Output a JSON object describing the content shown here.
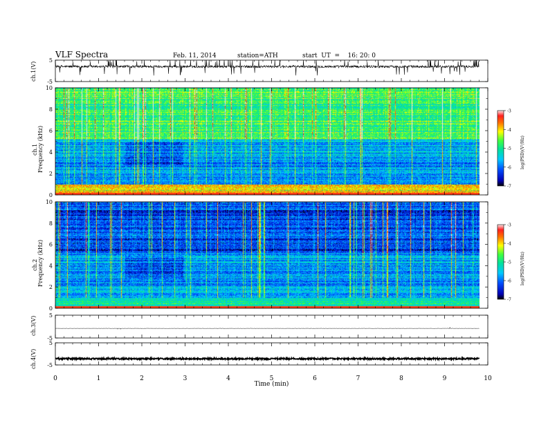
{
  "header": {
    "title": "VLF  Spectra",
    "date": "Feb. 11, 2014",
    "station": "station=ATH",
    "start": "start  UT  =    16: 20: 0"
  },
  "chart_data": [
    {
      "type": "line",
      "ylabel": "ch.1(V)",
      "ylim": [
        -5,
        5
      ],
      "yticks": [
        "5",
        "-5"
      ],
      "description_series": "noisy waveform around +2 V with spikes"
    },
    {
      "type": "heatmap",
      "ylabel_line1": "ch.1",
      "ylabel_line2": "Frequency  (kHz)",
      "ylim": [
        0,
        10
      ],
      "yticks": [
        "0",
        "2",
        "4",
        "6",
        "8",
        "10"
      ],
      "colorbar": {
        "label": "log(PSD)(V²/Hz)",
        "ticks": [
          "-3",
          "-4",
          "-5",
          "-6",
          "-7"
        ],
        "range": [
          -7,
          -3
        ]
      }
    },
    {
      "type": "heatmap",
      "ylabel_line1": "ch.2",
      "ylabel_line2": "Frequency  (kHz)",
      "ylim": [
        0,
        10
      ],
      "yticks": [
        "0",
        "2",
        "4",
        "6",
        "8",
        "10"
      ],
      "colorbar": {
        "label": "log(PSD)(V²/Hz)",
        "ticks": [
          "-3",
          "-4",
          "-5",
          "-6",
          "-7"
        ],
        "range": [
          -7,
          -3
        ]
      }
    },
    {
      "type": "line",
      "ylabel": "ch.3(V)",
      "ylim": [
        -5,
        5
      ],
      "yticks": [
        "5",
        "-5"
      ]
    },
    {
      "type": "line",
      "ylabel": "ch.4(V)",
      "ylim": [
        -5,
        5
      ],
      "yticks": [
        "5",
        "-5"
      ]
    }
  ],
  "xaxis": {
    "label": "Time  (min)",
    "ticks": [
      "0",
      "1",
      "2",
      "3",
      "4",
      "5",
      "6",
      "7",
      "8",
      "9",
      "10"
    ],
    "range": [
      0,
      10
    ],
    "data_end": 9.8
  }
}
